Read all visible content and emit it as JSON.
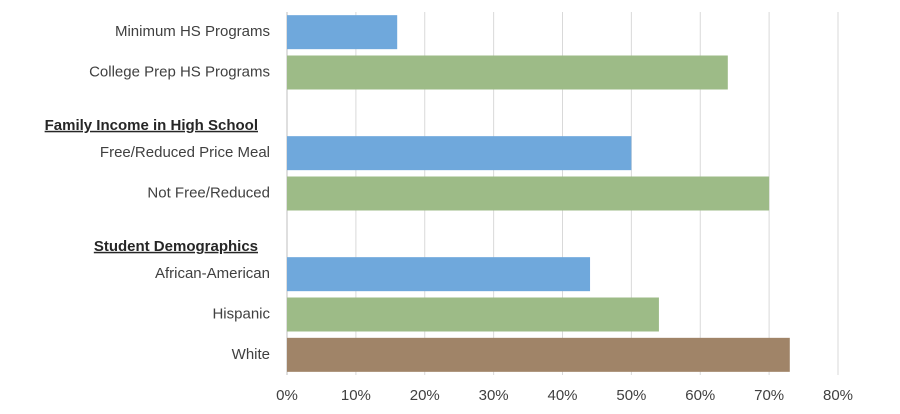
{
  "chart_data": {
    "type": "hbar",
    "categories": [
      "Minimum HS Programs",
      "College Prep HS Programs",
      "Family Income in High School",
      "Free/Reduced Price Meal",
      "Not Free/Reduced",
      "Student Demographics",
      "African-American",
      "Hispanic",
      "White"
    ],
    "values": [
      16,
      64,
      null,
      50,
      70,
      null,
      44,
      54,
      73
    ],
    "colors": [
      "#6fa8dc",
      "#9dbb87",
      null,
      "#6fa8dc",
      "#9dbb87",
      null,
      "#6fa8dc",
      "#9dbb87",
      "#a08468"
    ],
    "xlim": [
      0,
      80
    ],
    "xticks": [
      {
        "value": 0,
        "label": "0%"
      },
      {
        "value": 10,
        "label": "10%"
      },
      {
        "value": 20,
        "label": "20%"
      },
      {
        "value": 30,
        "label": "30%"
      },
      {
        "value": 40,
        "label": "40%"
      },
      {
        "value": 50,
        "label": "50%"
      },
      {
        "value": 60,
        "label": "60%"
      },
      {
        "value": 70,
        "label": "70%"
      },
      {
        "value": 80,
        "label": "80%"
      }
    ],
    "grid": true
  }
}
